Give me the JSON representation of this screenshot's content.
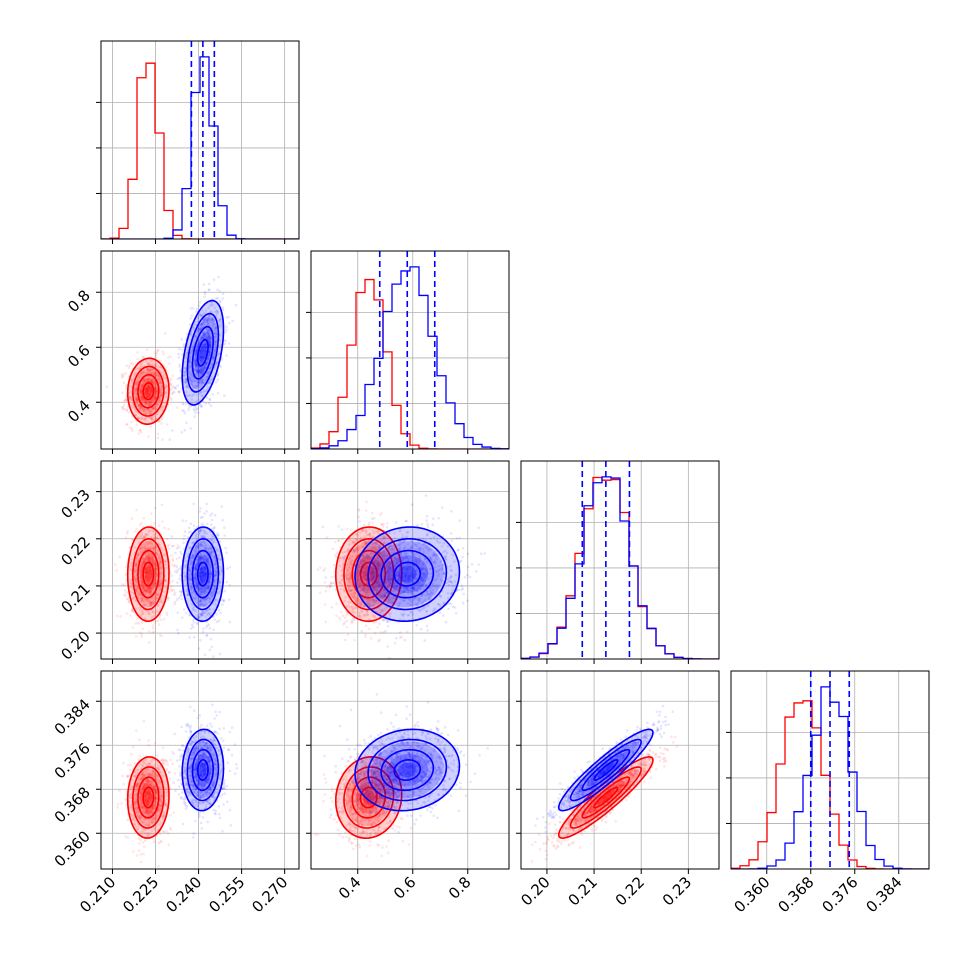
{
  "chart_data": {
    "type": "corner",
    "grid": true,
    "colors": {
      "red": "#ff0000",
      "blue": "#0000ff"
    },
    "parameters": [
      {
        "range": [
          0.206,
          0.275
        ],
        "ticks": [
          0.21,
          0.225,
          0.24,
          0.255,
          0.27
        ],
        "tick_labels": [
          "0.210",
          "0.225",
          "0.240",
          "0.255",
          "0.270"
        ]
      },
      {
        "range": [
          0.23,
          0.95
        ],
        "ticks": [
          0.4,
          0.6,
          0.8
        ],
        "tick_labels": [
          "0.4",
          "0.6",
          "0.8"
        ]
      },
      {
        "range": [
          0.1945,
          0.2365
        ],
        "ticks": [
          0.2,
          0.21,
          0.22,
          0.23
        ],
        "tick_labels": [
          "0.20",
          "0.21",
          "0.22",
          "0.23"
        ]
      },
      {
        "range": [
          0.3535,
          0.3895
        ],
        "ticks": [
          0.36,
          0.368,
          0.376,
          0.384
        ],
        "tick_labels": [
          "0.360",
          "0.368",
          "0.376",
          "0.384"
        ]
      }
    ],
    "series": [
      {
        "color": "#ff0000",
        "means": [
          0.2225,
          0.44,
          0.2125,
          0.3665
        ],
        "sigmas": [
          0.0036,
          0.06,
          0.005,
          0.0037
        ],
        "correlations": [
          [
            0,
            1,
            0.05
          ],
          [
            0,
            2,
            0.02
          ],
          [
            0,
            3,
            0.05
          ],
          [
            1,
            2,
            0.02
          ],
          [
            1,
            3,
            0.08
          ],
          [
            2,
            3,
            0.92
          ]
        ]
      },
      {
        "color": "#0000ff",
        "means": [
          0.2415,
          0.58,
          0.2125,
          0.3715
        ],
        "sigmas": [
          0.0036,
          0.095,
          0.005,
          0.0037
        ],
        "correlations": [
          [
            0,
            1,
            0.45
          ],
          [
            0,
            2,
            0.02
          ],
          [
            0,
            3,
            0.05
          ],
          [
            1,
            2,
            0.05
          ],
          [
            1,
            3,
            0.1
          ],
          [
            2,
            3,
            0.92
          ]
        ]
      }
    ],
    "quantile_lines": {
      "color": "#0000ff",
      "style": "dashed",
      "values": [
        [
          0.2375,
          0.2415,
          0.2455
        ],
        [
          0.48,
          0.58,
          0.68
        ],
        [
          0.2075,
          0.2125,
          0.2175
        ],
        [
          0.368,
          0.3715,
          0.375
        ]
      ]
    }
  }
}
